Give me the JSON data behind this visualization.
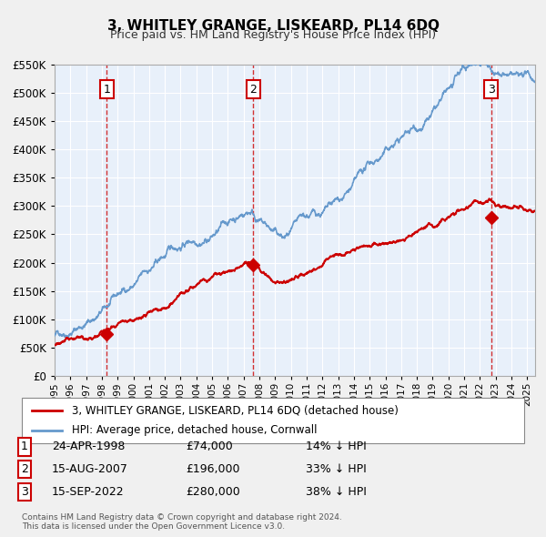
{
  "title": "3, WHITLEY GRANGE, LISKEARD, PL14 6DQ",
  "subtitle": "Price paid vs. HM Land Registry's House Price Index (HPI)",
  "bg_color": "#dce9f5",
  "plot_bg_color": "#e8f0fa",
  "grid_color": "#ffffff",
  "red_line_color": "#cc0000",
  "blue_line_color": "#6699cc",
  "sale_marker_color": "#cc0000",
  "vline_color": "#cc0000",
  "ylim": [
    0,
    550000
  ],
  "yticks": [
    0,
    50000,
    100000,
    150000,
    200000,
    250000,
    300000,
    350000,
    400000,
    450000,
    500000,
    550000
  ],
  "ytick_labels": [
    "£0",
    "£50K",
    "£100K",
    "£150K",
    "£200K",
    "£250K",
    "£300K",
    "£350K",
    "£400K",
    "£450K",
    "£500K",
    "£550K"
  ],
  "sales": [
    {
      "num": 1,
      "date_num": 1998.32,
      "price": 74000,
      "label": "1"
    },
    {
      "num": 2,
      "date_num": 2007.62,
      "price": 196000,
      "label": "2"
    },
    {
      "num": 3,
      "date_num": 2022.71,
      "price": 280000,
      "label": "3"
    }
  ],
  "legend_line1": "3, WHITLEY GRANGE, LISKEARD, PL14 6DQ (detached house)",
  "legend_line2": "HPI: Average price, detached house, Cornwall",
  "table_rows": [
    {
      "num": "1",
      "date": "24-APR-1998",
      "price": "£74,000",
      "hpi": "14% ↓ HPI"
    },
    {
      "num": "2",
      "date": "15-AUG-2007",
      "price": "£196,000",
      "hpi": "33% ↓ HPI"
    },
    {
      "num": "3",
      "date": "15-SEP-2022",
      "price": "£280,000",
      "hpi": "38% ↓ HPI"
    }
  ],
  "footer": "Contains HM Land Registry data © Crown copyright and database right 2024.\nThis data is licensed under the Open Government Licence v3.0.",
  "xmin": 1995.0,
  "xmax": 2025.5
}
